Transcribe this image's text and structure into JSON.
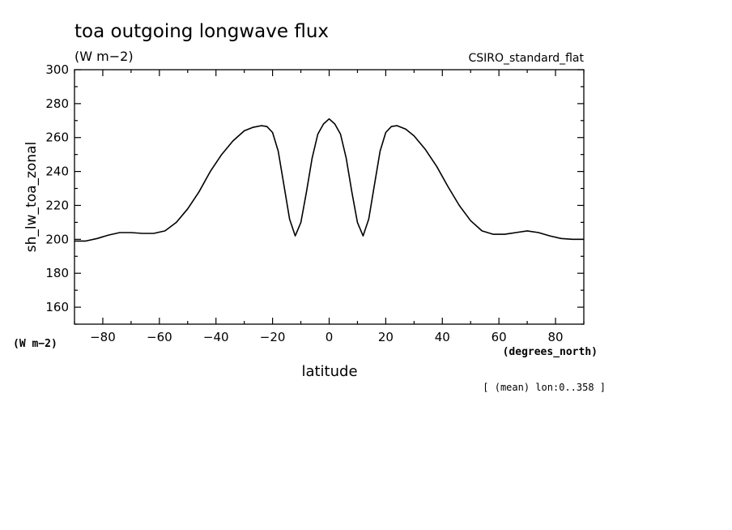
{
  "chart_data": {
    "type": "line",
    "title": "toa outgoing longwave flux",
    "units": "(W m−2)",
    "dataset": "CSIRO_standard_flat",
    "ylabel": "sh_lw_toa_zonal",
    "yunits": "(W m−2)",
    "xlabel": "latitude",
    "xunits": "(degrees_north)",
    "footnote": "[ (mean) lon:0..358 ]",
    "xlim": [
      -90,
      90
    ],
    "ylim": [
      150,
      300
    ],
    "xticks": [
      -80,
      -60,
      -40,
      -20,
      0,
      20,
      40,
      60,
      80
    ],
    "yticks": [
      160,
      180,
      200,
      220,
      240,
      260,
      280,
      300
    ],
    "grid": false,
    "series": [
      {
        "x": [
          -90,
          -86,
          -82,
          -78,
          -74,
          -70,
          -66,
          -62,
          -58,
          -54,
          -50,
          -46,
          -42,
          -38,
          -34,
          -30,
          -27,
          -24,
          -22,
          -20,
          -18,
          -16,
          -14,
          -12,
          -10,
          -8,
          -6,
          -4,
          -2,
          0,
          2,
          4,
          6,
          8,
          10,
          12,
          14,
          16,
          18,
          20,
          22,
          24,
          27,
          30,
          34,
          38,
          42,
          46,
          50,
          54,
          58,
          62,
          66,
          70,
          74,
          78,
          82,
          86,
          90
        ],
        "y": [
          199,
          199,
          200.5,
          202.5,
          204,
          204,
          203.5,
          203.5,
          205,
          210,
          218,
          228,
          240,
          250,
          258,
          264,
          266,
          267,
          266.5,
          263,
          252,
          232,
          212,
          202,
          210,
          228,
          248,
          262,
          268,
          271,
          268,
          262,
          248,
          228,
          210,
          202,
          212,
          232,
          252,
          263,
          266.5,
          267,
          265,
          261,
          253,
          243,
          231,
          220,
          211,
          205,
          203,
          203,
          204,
          205,
          204,
          202,
          200.5,
          200,
          200
        ]
      }
    ]
  }
}
